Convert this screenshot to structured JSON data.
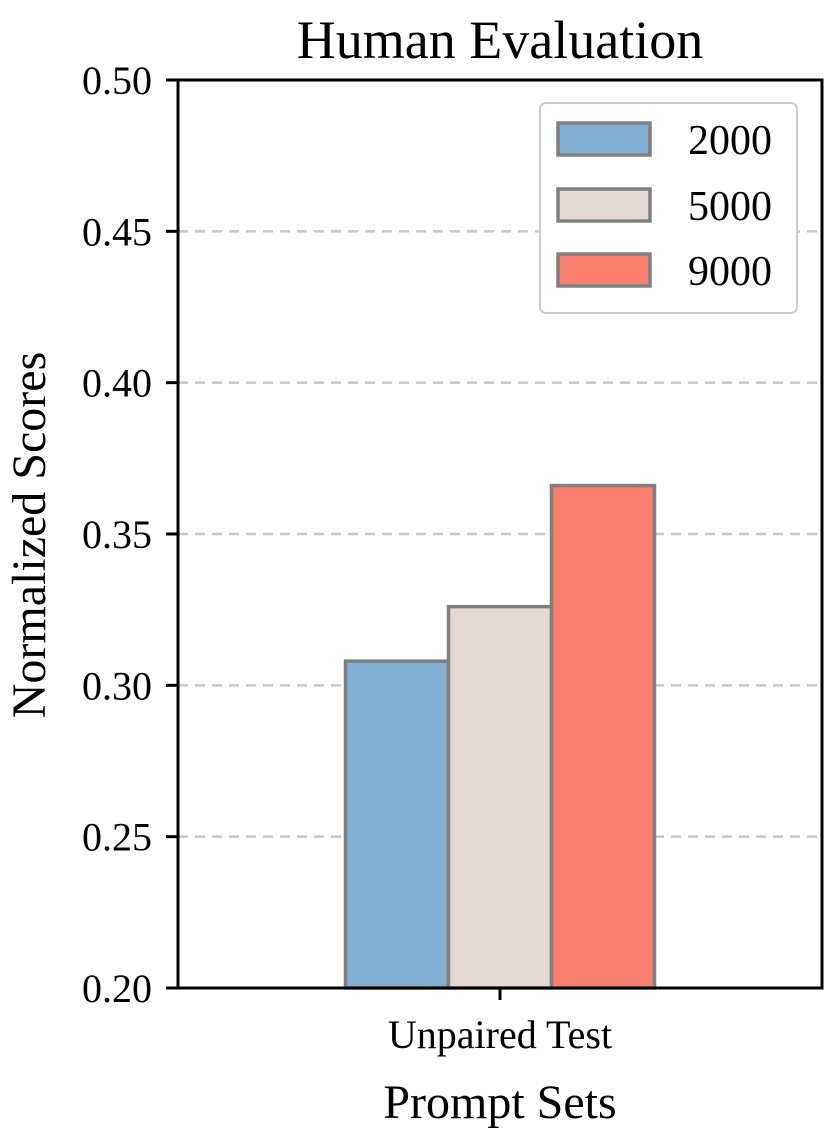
{
  "chart_data": {
    "type": "bar",
    "title": "Human Evaluation",
    "xlabel": "Prompt Sets",
    "ylabel": "Normalized Scores",
    "categories": [
      "Unpaired Test"
    ],
    "series": [
      {
        "name": "2000",
        "values": [
          0.308
        ],
        "color": "#82afd3"
      },
      {
        "name": "5000",
        "values": [
          0.326
        ],
        "color": "#e6d9d1"
      },
      {
        "name": "9000",
        "values": [
          0.366
        ],
        "color": "#fa7f6f"
      }
    ],
    "ylim": [
      0.2,
      0.5
    ],
    "yticks": [
      "0.20",
      "0.25",
      "0.30",
      "0.35",
      "0.40",
      "0.45",
      "0.50"
    ],
    "grid": true,
    "legend_position": "top-right",
    "bar_edge_color": "#808080"
  }
}
